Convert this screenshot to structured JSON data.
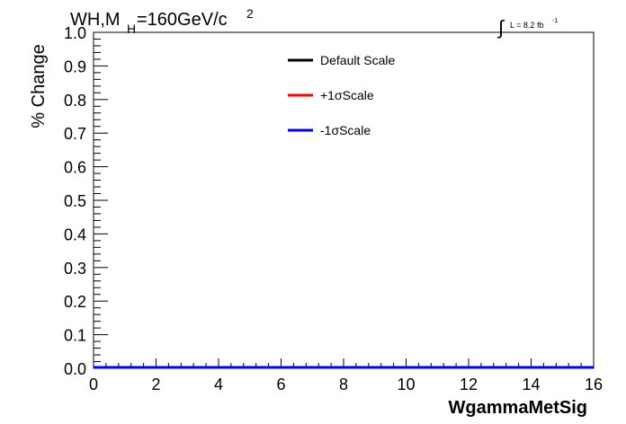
{
  "chart_data": {
    "type": "line",
    "title_main": "WH,M",
    "title_sub": "H",
    "title_rest": "=160GeV/c",
    "title_sup": "2",
    "lumi_symbol": "∫",
    "lumi_text": "L = 8.2 fb",
    "lumi_sup": "-1",
    "xlabel": "WgammaMetSig",
    "ylabel": "% Change",
    "xlim": [
      0,
      16
    ],
    "ylim": [
      0,
      1
    ],
    "xticks": [
      "0",
      "2",
      "4",
      "6",
      "8",
      "10",
      "12",
      "14",
      "16"
    ],
    "yticks": [
      "0.0",
      "0.1",
      "0.2",
      "0.3",
      "0.4",
      "0.5",
      "0.6",
      "0.7",
      "0.8",
      "0.9",
      "1.0"
    ],
    "grid": false,
    "legend_position": "top-center",
    "series": [
      {
        "name": "Default Scale",
        "color": "#000000",
        "x": [
          0,
          16
        ],
        "y": [
          0,
          0
        ]
      },
      {
        "name": "+1σScale",
        "color": "#ff0000",
        "x": [
          0,
          16
        ],
        "y": [
          0,
          0
        ]
      },
      {
        "name": "-1σScale",
        "color": "#0000ff",
        "x": [
          0,
          16
        ],
        "y": [
          0,
          0
        ]
      }
    ]
  }
}
